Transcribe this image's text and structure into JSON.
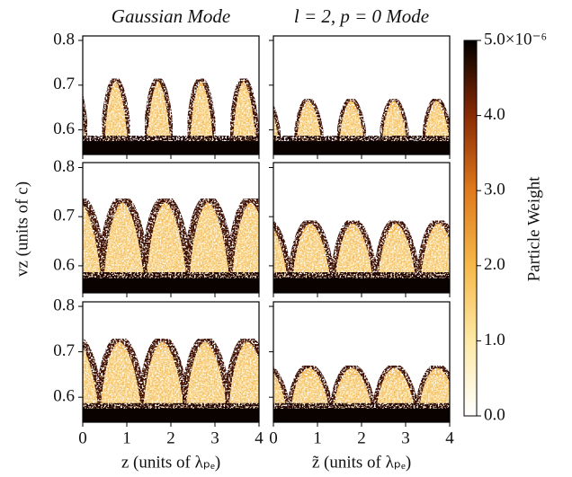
{
  "chart_data": {
    "type": "heatmap",
    "column_titles": [
      "Gaussian Mode",
      "l = 2, p = 0 Mode"
    ],
    "ylabel": "vz (units of c)",
    "xlabels": [
      "z (units of λₚₑ)",
      "z̃ (units of λₚₑ)"
    ],
    "xlim": [
      0,
      4
    ],
    "xticks": [
      0,
      1,
      2,
      3,
      4
    ],
    "ylim": [
      0.545,
      0.81
    ],
    "yticks": [
      0.6,
      0.7,
      0.8
    ],
    "colorbar": {
      "label": "Particle Weight",
      "lim": [
        0,
        5e-06
      ],
      "ticks": [
        {
          "value": 0,
          "label": "0.0"
        },
        {
          "value": 1e-06,
          "label": "1.0"
        },
        {
          "value": 2e-06,
          "label": "2.0"
        },
        {
          "value": 3e-06,
          "label": "3.0"
        },
        {
          "value": 4e-06,
          "label": "4.0"
        },
        {
          "value": 5e-06,
          "label": "5.0×10⁻⁶"
        }
      ]
    }
  }
}
